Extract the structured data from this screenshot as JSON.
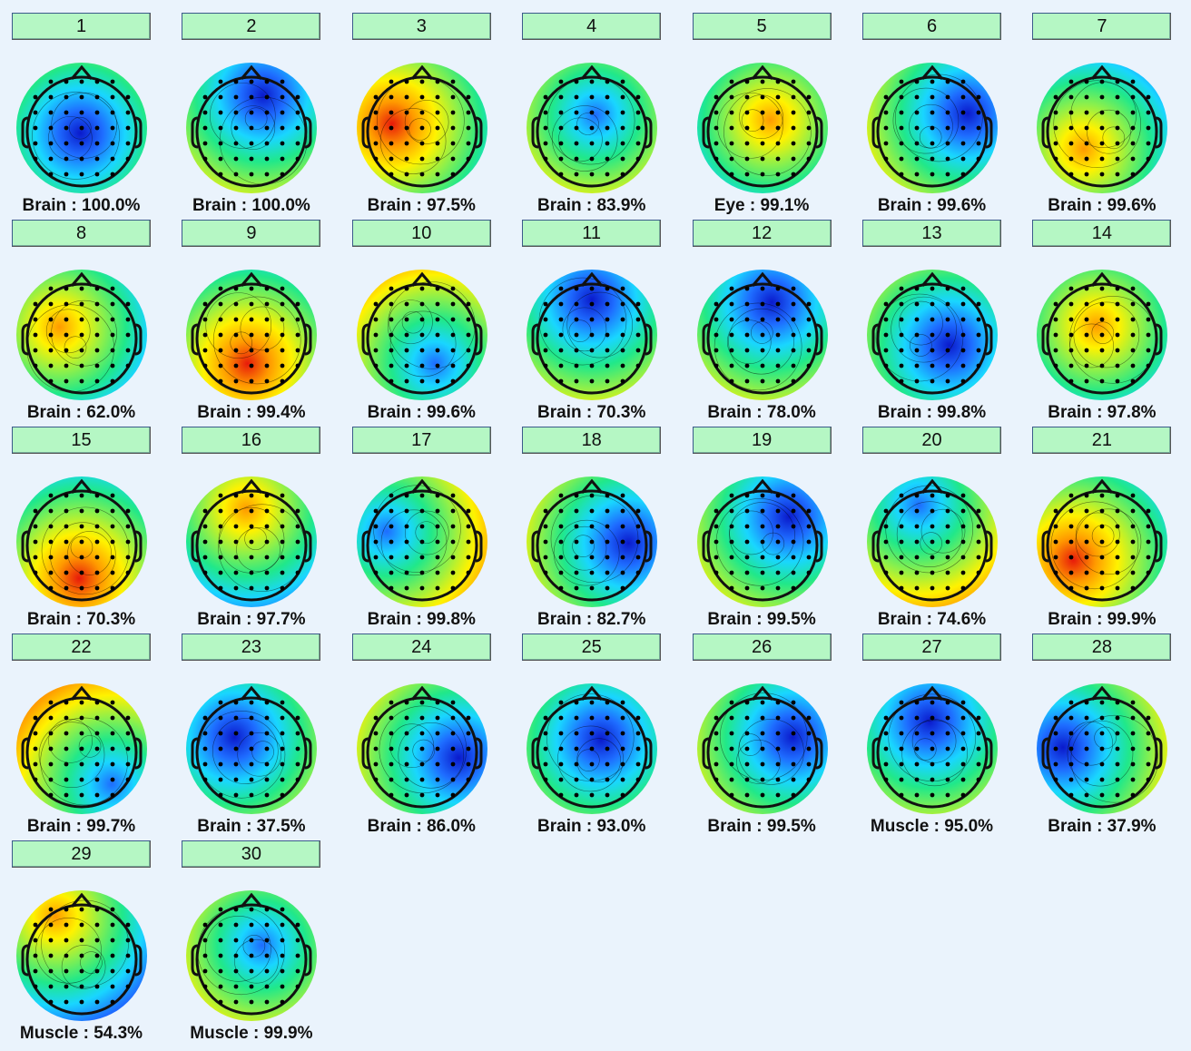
{
  "components": [
    {
      "button": "1",
      "label": "Brain : 100.0%"
    },
    {
      "button": "2",
      "label": "Brain : 100.0%"
    },
    {
      "button": "3",
      "label": "Brain : 97.5%"
    },
    {
      "button": "4",
      "label": "Brain : 83.9%"
    },
    {
      "button": "5",
      "label": "Eye : 99.1%"
    },
    {
      "button": "6",
      "label": "Brain : 99.6%"
    },
    {
      "button": "7",
      "label": "Brain : 99.6%"
    },
    {
      "button": "8",
      "label": "Brain : 62.0%"
    },
    {
      "button": "9",
      "label": "Brain : 99.4%"
    },
    {
      "button": "10",
      "label": "Brain : 99.6%"
    },
    {
      "button": "11",
      "label": "Brain : 70.3%"
    },
    {
      "button": "12",
      "label": "Brain : 78.0%"
    },
    {
      "button": "13",
      "label": "Brain : 99.8%"
    },
    {
      "button": "14",
      "label": "Brain : 97.8%"
    },
    {
      "button": "15",
      "label": "Brain : 70.3%"
    },
    {
      "button": "16",
      "label": "Brain : 97.7%"
    },
    {
      "button": "17",
      "label": "Brain : 99.8%"
    },
    {
      "button": "18",
      "label": "Brain : 82.7%"
    },
    {
      "button": "19",
      "label": "Brain : 99.5%"
    },
    {
      "button": "20",
      "label": "Brain : 74.6%"
    },
    {
      "button": "21",
      "label": "Brain : 99.9%"
    },
    {
      "button": "22",
      "label": "Brain : 99.7%"
    },
    {
      "button": "23",
      "label": "Brain : 37.5%"
    },
    {
      "button": "24",
      "label": "Brain : 86.0%"
    },
    {
      "button": "25",
      "label": "Brain : 93.0%"
    },
    {
      "button": "26",
      "label": "Brain : 99.5%"
    },
    {
      "button": "27",
      "label": "Muscle : 95.0%"
    },
    {
      "button": "28",
      "label": "Brain : 37.9%"
    },
    {
      "button": "29",
      "label": "Muscle : 54.3%"
    },
    {
      "button": "30",
      "label": "Muscle : 99.9%"
    }
  ]
}
